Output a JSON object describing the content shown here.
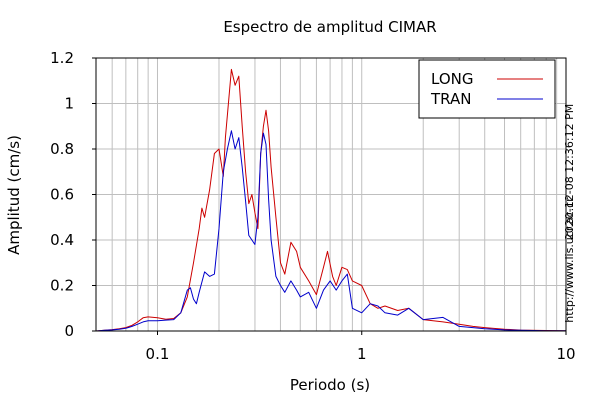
{
  "chart_data": {
    "type": "line",
    "title": "Espectro de amplitud CIMAR",
    "xlabel": "Periodo (s)",
    "ylabel": "Amplitud (cm/s)",
    "x_scale": "log",
    "xlim": [
      0.05,
      10
    ],
    "ylim": [
      0,
      1.2
    ],
    "grid": true,
    "legend_position": "top-right",
    "x_ticks": [
      {
        "value": 0.1,
        "label": "0.1"
      },
      {
        "value": 1,
        "label": "1"
      },
      {
        "value": 10,
        "label": "10"
      }
    ],
    "y_ticks": [
      {
        "value": 0,
        "label": "0"
      },
      {
        "value": 0.2,
        "label": "0.2"
      },
      {
        "value": 0.4,
        "label": "0.4"
      },
      {
        "value": 0.6,
        "label": "0.6"
      },
      {
        "value": 0.8,
        "label": "0.8"
      },
      {
        "value": 1,
        "label": "1"
      },
      {
        "value": 1.2,
        "label": "1.2"
      }
    ],
    "series": [
      {
        "name": "LONG",
        "color": "#cc0000",
        "points": [
          [
            0.05,
            0.0
          ],
          [
            0.055,
            0.003
          ],
          [
            0.06,
            0.006
          ],
          [
            0.065,
            0.01
          ],
          [
            0.07,
            0.015
          ],
          [
            0.075,
            0.025
          ],
          [
            0.08,
            0.04
          ],
          [
            0.085,
            0.058
          ],
          [
            0.09,
            0.062
          ],
          [
            0.1,
            0.058
          ],
          [
            0.11,
            0.052
          ],
          [
            0.12,
            0.055
          ],
          [
            0.13,
            0.08
          ],
          [
            0.14,
            0.15
          ],
          [
            0.15,
            0.3
          ],
          [
            0.16,
            0.45
          ],
          [
            0.165,
            0.54
          ],
          [
            0.17,
            0.5
          ],
          [
            0.18,
            0.62
          ],
          [
            0.19,
            0.78
          ],
          [
            0.2,
            0.8
          ],
          [
            0.21,
            0.68
          ],
          [
            0.215,
            0.85
          ],
          [
            0.22,
            0.95
          ],
          [
            0.23,
            1.15
          ],
          [
            0.24,
            1.08
          ],
          [
            0.25,
            1.12
          ],
          [
            0.26,
            0.9
          ],
          [
            0.27,
            0.7
          ],
          [
            0.28,
            0.56
          ],
          [
            0.29,
            0.6
          ],
          [
            0.3,
            0.52
          ],
          [
            0.31,
            0.45
          ],
          [
            0.32,
            0.78
          ],
          [
            0.33,
            0.9
          ],
          [
            0.34,
            0.97
          ],
          [
            0.35,
            0.88
          ],
          [
            0.36,
            0.72
          ],
          [
            0.38,
            0.5
          ],
          [
            0.4,
            0.3
          ],
          [
            0.42,
            0.25
          ],
          [
            0.45,
            0.39
          ],
          [
            0.48,
            0.35
          ],
          [
            0.5,
            0.28
          ],
          [
            0.55,
            0.22
          ],
          [
            0.6,
            0.16
          ],
          [
            0.65,
            0.28
          ],
          [
            0.68,
            0.35
          ],
          [
            0.72,
            0.24
          ],
          [
            0.75,
            0.2
          ],
          [
            0.8,
            0.28
          ],
          [
            0.85,
            0.27
          ],
          [
            0.9,
            0.22
          ],
          [
            1.0,
            0.2
          ],
          [
            1.1,
            0.12
          ],
          [
            1.2,
            0.1
          ],
          [
            1.3,
            0.11
          ],
          [
            1.5,
            0.09
          ],
          [
            1.7,
            0.1
          ],
          [
            2.0,
            0.05
          ],
          [
            2.5,
            0.04
          ],
          [
            3.0,
            0.03
          ],
          [
            3.5,
            0.02
          ],
          [
            4.0,
            0.015
          ],
          [
            5.0,
            0.008
          ],
          [
            6.0,
            0.004
          ],
          [
            8.0,
            0.002
          ],
          [
            10.0,
            0.001
          ]
        ]
      },
      {
        "name": "TRAN",
        "color": "#0000cc",
        "points": [
          [
            0.05,
            0.0
          ],
          [
            0.055,
            0.003
          ],
          [
            0.06,
            0.005
          ],
          [
            0.065,
            0.008
          ],
          [
            0.07,
            0.012
          ],
          [
            0.075,
            0.02
          ],
          [
            0.08,
            0.03
          ],
          [
            0.085,
            0.04
          ],
          [
            0.09,
            0.045
          ],
          [
            0.1,
            0.045
          ],
          [
            0.11,
            0.048
          ],
          [
            0.12,
            0.05
          ],
          [
            0.13,
            0.08
          ],
          [
            0.14,
            0.18
          ],
          [
            0.145,
            0.19
          ],
          [
            0.15,
            0.14
          ],
          [
            0.155,
            0.12
          ],
          [
            0.16,
            0.17
          ],
          [
            0.17,
            0.26
          ],
          [
            0.18,
            0.24
          ],
          [
            0.19,
            0.25
          ],
          [
            0.2,
            0.45
          ],
          [
            0.21,
            0.7
          ],
          [
            0.22,
            0.8
          ],
          [
            0.23,
            0.88
          ],
          [
            0.24,
            0.8
          ],
          [
            0.25,
            0.85
          ],
          [
            0.26,
            0.72
          ],
          [
            0.27,
            0.57
          ],
          [
            0.28,
            0.42
          ],
          [
            0.29,
            0.4
          ],
          [
            0.3,
            0.38
          ],
          [
            0.31,
            0.5
          ],
          [
            0.32,
            0.78
          ],
          [
            0.33,
            0.87
          ],
          [
            0.34,
            0.82
          ],
          [
            0.35,
            0.58
          ],
          [
            0.36,
            0.4
          ],
          [
            0.38,
            0.24
          ],
          [
            0.4,
            0.2
          ],
          [
            0.42,
            0.17
          ],
          [
            0.45,
            0.22
          ],
          [
            0.48,
            0.18
          ],
          [
            0.5,
            0.15
          ],
          [
            0.55,
            0.17
          ],
          [
            0.6,
            0.1
          ],
          [
            0.65,
            0.18
          ],
          [
            0.7,
            0.22
          ],
          [
            0.75,
            0.18
          ],
          [
            0.8,
            0.22
          ],
          [
            0.85,
            0.25
          ],
          [
            0.9,
            0.1
          ],
          [
            1.0,
            0.08
          ],
          [
            1.1,
            0.12
          ],
          [
            1.2,
            0.11
          ],
          [
            1.3,
            0.08
          ],
          [
            1.5,
            0.07
          ],
          [
            1.7,
            0.1
          ],
          [
            2.0,
            0.05
          ],
          [
            2.5,
            0.06
          ],
          [
            3.0,
            0.02
          ],
          [
            3.5,
            0.015
          ],
          [
            4.0,
            0.01
          ],
          [
            5.0,
            0.005
          ],
          [
            6.0,
            0.003
          ],
          [
            8.0,
            0.001
          ],
          [
            10.0,
            0.001
          ]
        ]
      }
    ]
  },
  "side_text": {
    "timestamp": "2020-12-08 12:36:12 PM",
    "url": "http://www.lis.ucr.ac.cr"
  }
}
